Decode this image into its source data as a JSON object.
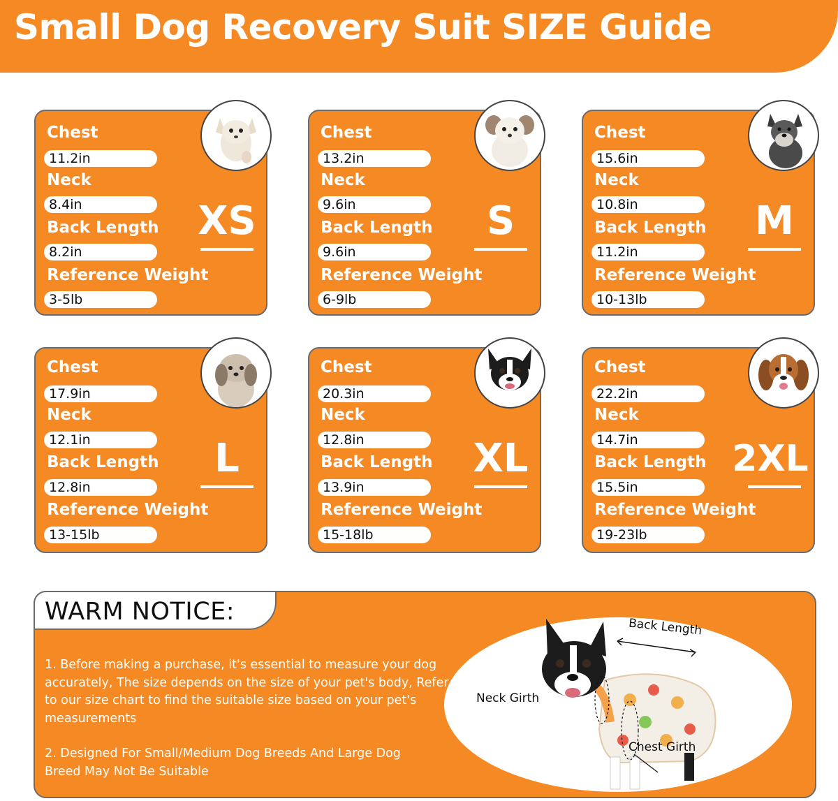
{
  "title": "Small Dog Recovery Suit SIZE Guide",
  "labels": {
    "chest": "Chest",
    "neck": "Neck",
    "back_length": "Back Length",
    "reference_weight": "Reference Weight"
  },
  "sizes": [
    {
      "size": "XS",
      "chest": "11.2in",
      "neck": "8.4in",
      "back": "8.2in",
      "weight": "3-5lb",
      "photo": "chihuahua"
    },
    {
      "size": "S",
      "chest": "13.2in",
      "neck": "9.6in",
      "back": "9.6in",
      "weight": "6-9lb",
      "photo": "maltese"
    },
    {
      "size": "M",
      "chest": "15.6in",
      "neck": "10.8in",
      "back": "11.2in",
      "weight": "10-13lb",
      "photo": "schnauzer"
    },
    {
      "size": "L",
      "chest": "17.9in",
      "neck": "12.1in",
      "back": "12.8in",
      "weight": "13-15lb",
      "photo": "shih-tzu"
    },
    {
      "size": "XL",
      "chest": "20.3in",
      "neck": "12.8in",
      "back": "13.9in",
      "weight": "15-18lb",
      "photo": "boston-terrier"
    },
    {
      "size": "2XL",
      "chest": "22.2in",
      "neck": "14.7in",
      "back": "15.5in",
      "weight": "19-23lb",
      "photo": "beagle"
    }
  ],
  "notice": {
    "title": "WARM NOTICE:",
    "item1": "1. Before making a purchase, it's essential to measure your dog accurately, The size depends on the size of your pet's body, Refer to our size chart to find the suitable size based on your pet's measurements",
    "item2": "2. Designed For Small/Medium Dog Breeds And Large Dog Breed May Not Be Suitable"
  },
  "diagram": {
    "back_length": "Back Length",
    "neck_girth": "Neck Girth",
    "chest_girth": "Chest Girth"
  },
  "colors": {
    "accent": "#f58a25",
    "border": "#6b6b6b",
    "text_dark": "#111111"
  }
}
